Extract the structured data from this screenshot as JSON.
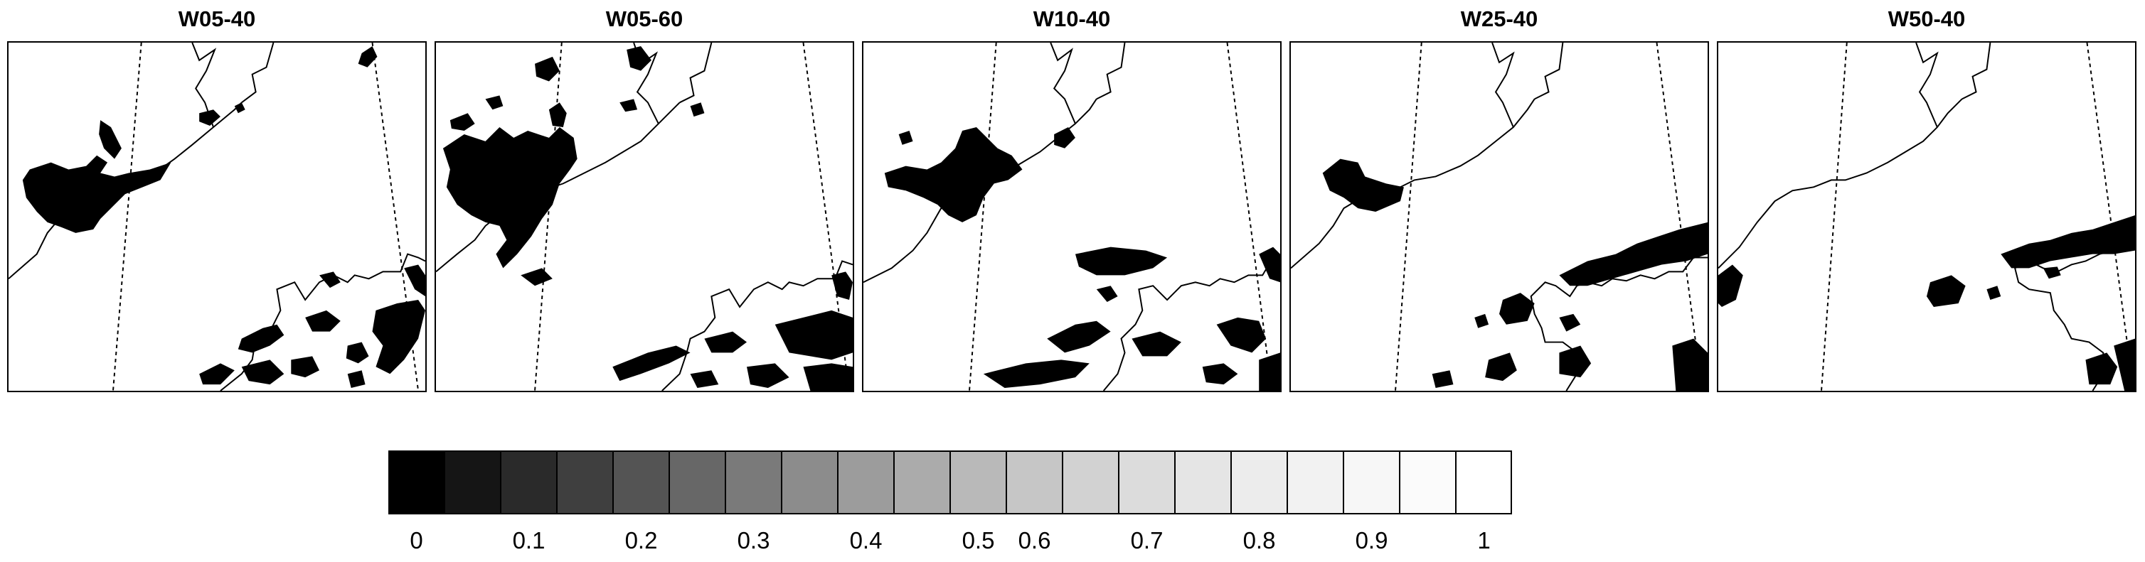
{
  "chart_data": {
    "type": "heatmap",
    "panels": [
      {
        "title": "W05-40"
      },
      {
        "title": "W05-60"
      },
      {
        "title": "W10-40"
      },
      {
        "title": "W25-40"
      },
      {
        "title": "W50-40"
      }
    ],
    "colorbar": {
      "min": 0,
      "max": 1,
      "step": 0.05,
      "ticks": [
        "0",
        "0.1",
        "0.2",
        "0.3",
        "0.4",
        "0.5",
        "0.6",
        "0.7",
        "0.8",
        "0.9",
        "1"
      ],
      "colors": [
        "#000000",
        "#151515",
        "#2a2a2a",
        "#3f3f3f",
        "#545454",
        "#676767",
        "#7a7a7a",
        "#8c8c8c",
        "#9c9c9c",
        "#ababab",
        "#b9b9b9",
        "#c6c6c6",
        "#d2d2d2",
        "#dcdcdc",
        "#e5e5e5",
        "#ececec",
        "#f2f2f2",
        "#f7f7f7",
        "#fbfbfb",
        "#ffffff"
      ]
    }
  }
}
